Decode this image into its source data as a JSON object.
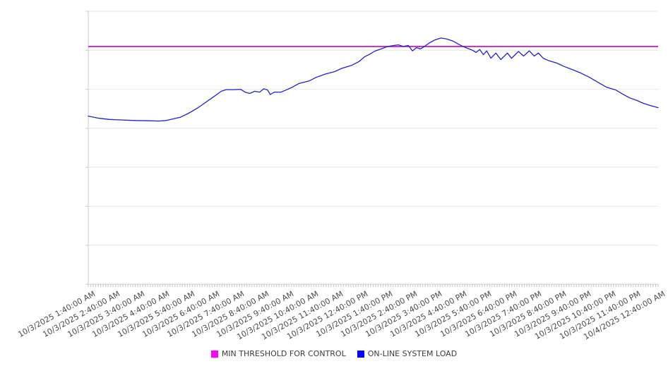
{
  "chart_data": {
    "type": "line",
    "title": "",
    "xlabel": "",
    "ylabel": "",
    "x_axis": {
      "range_minutes": [
        0,
        1380
      ],
      "label_interval_minutes": 60,
      "minor_tick_interval_minutes": 6,
      "tick_labels": [
        "10/3/2025 1:40:00 AM",
        "10/3/2025 2:40:00 AM",
        "10/3/2025 3:40:00 AM",
        "10/3/2025 4:40:00 AM",
        "10/3/2025 5:40:00 AM",
        "10/3/2025 6:40:00 AM",
        "10/3/2025 7:40:00 AM",
        "10/3/2025 8:40:00 AM",
        "10/3/2025 9:40:00 AM",
        "10/3/2025 10:40:00 AM",
        "10/3/2025 11:40:00 AM",
        "10/3/2025 12:40:00 PM",
        "10/3/2025 1:40:00 PM",
        "10/3/2025 2:40:00 PM",
        "10/3/2025 3:40:00 PM",
        "10/3/2025 4:40:00 PM",
        "10/3/2025 5:40:00 PM",
        "10/3/2025 6:40:00 PM",
        "10/3/2025 7:40:00 PM",
        "10/3/2025 8:40:00 PM",
        "10/3/2025 9:40:00 PM",
        "10/3/2025 10:40:00 PM",
        "10/3/2025 11:40:00 PM",
        "10/4/2025 12:40:00 AM"
      ]
    },
    "y_axis": {
      "tick_labels_visible": false,
      "range": [
        0,
        100
      ],
      "gridline_divisions": 7,
      "grid_on": true
    },
    "series": [
      {
        "name": "MIN THRESHOLD FOR CONTROL",
        "type": "constant",
        "color": "#cc00cc",
        "value": 87.1
      },
      {
        "name": "ON-LINE SYSTEM LOAD",
        "type": "line",
        "color": "#2121cd",
        "points": [
          [
            0,
            61.6
          ],
          [
            26,
            60.8
          ],
          [
            51,
            60.4
          ],
          [
            77,
            60.2
          ],
          [
            111,
            60.0
          ],
          [
            146,
            59.9
          ],
          [
            171,
            59.8
          ],
          [
            189,
            60.0
          ],
          [
            206,
            60.6
          ],
          [
            223,
            61.2
          ],
          [
            240,
            62.4
          ],
          [
            252,
            63.4
          ],
          [
            266,
            64.7
          ],
          [
            283,
            66.5
          ],
          [
            300,
            68.3
          ],
          [
            312,
            69.6
          ],
          [
            322,
            70.7
          ],
          [
            334,
            71.3
          ],
          [
            351,
            71.3
          ],
          [
            369,
            71.4
          ],
          [
            381,
            70.3
          ],
          [
            391,
            69.9
          ],
          [
            403,
            70.7
          ],
          [
            415,
            70.4
          ],
          [
            425,
            71.6
          ],
          [
            434,
            71.2
          ],
          [
            441,
            69.5
          ],
          [
            451,
            70.4
          ],
          [
            466,
            70.4
          ],
          [
            477,
            71.0
          ],
          [
            494,
            72.2
          ],
          [
            511,
            73.6
          ],
          [
            535,
            74.5
          ],
          [
            552,
            75.8
          ],
          [
            574,
            77.0
          ],
          [
            597,
            77.9
          ],
          [
            614,
            79.1
          ],
          [
            638,
            80.2
          ],
          [
            655,
            81.5
          ],
          [
            669,
            83.3
          ],
          [
            681,
            84.2
          ],
          [
            694,
            85.4
          ],
          [
            711,
            86.3
          ],
          [
            725,
            87.1
          ],
          [
            741,
            87.5
          ],
          [
            751,
            87.7
          ],
          [
            763,
            87.1
          ],
          [
            775,
            87.5
          ],
          [
            785,
            85.5
          ],
          [
            795,
            86.7
          ],
          [
            804,
            86.2
          ],
          [
            814,
            87.1
          ],
          [
            826,
            88.4
          ],
          [
            838,
            89.4
          ],
          [
            854,
            90.2
          ],
          [
            867,
            89.9
          ],
          [
            883,
            89.1
          ],
          [
            897,
            87.9
          ],
          [
            909,
            87.0
          ],
          [
            919,
            86.4
          ],
          [
            931,
            85.7
          ],
          [
            939,
            84.9
          ],
          [
            948,
            86.0
          ],
          [
            957,
            84.1
          ],
          [
            965,
            85.5
          ],
          [
            975,
            82.8
          ],
          [
            987,
            84.7
          ],
          [
            999,
            82.3
          ],
          [
            1015,
            84.7
          ],
          [
            1025,
            82.8
          ],
          [
            1042,
            85.3
          ],
          [
            1054,
            83.6
          ],
          [
            1068,
            85.5
          ],
          [
            1080,
            83.6
          ],
          [
            1090,
            84.7
          ],
          [
            1102,
            82.8
          ],
          [
            1114,
            82.0
          ],
          [
            1135,
            81.0
          ],
          [
            1152,
            79.8
          ],
          [
            1171,
            78.7
          ],
          [
            1191,
            77.5
          ],
          [
            1214,
            75.8
          ],
          [
            1234,
            74.0
          ],
          [
            1255,
            72.2
          ],
          [
            1277,
            71.2
          ],
          [
            1294,
            69.7
          ],
          [
            1311,
            68.3
          ],
          [
            1329,
            67.3
          ],
          [
            1342,
            66.4
          ],
          [
            1356,
            65.7
          ],
          [
            1368,
            65.2
          ],
          [
            1380,
            64.7
          ]
        ]
      }
    ],
    "legend": {
      "position": "bottom",
      "items": [
        {
          "label": "MIN THRESHOLD FOR CONTROL",
          "color": "#ff00ff"
        },
        {
          "label": "ON-LINE SYSTEM LOAD",
          "color": "#0000ff"
        }
      ]
    },
    "style_colors": {
      "gridline": "#e6e6e6",
      "axis": "#c8c8c8",
      "tick_label_text": "#4a4a4a",
      "legend_text": "#3c3c3c",
      "background": "#ffffff"
    }
  }
}
